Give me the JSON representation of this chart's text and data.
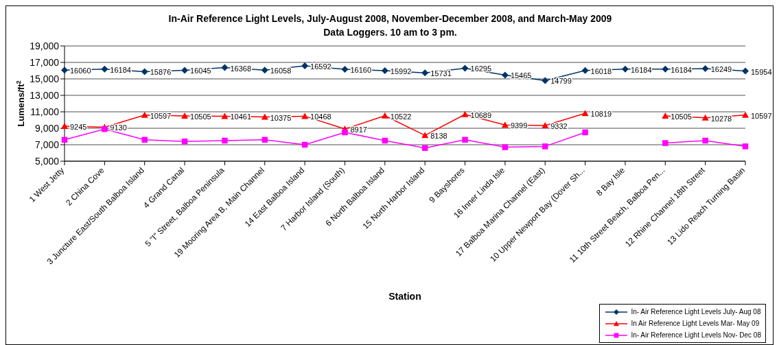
{
  "chart_data": {
    "type": "line",
    "title": "In-Air Reference Light Levels, July-August 2008, November-December 2008, and March-May 2009",
    "subtitle": "Data Loggers.    10 am to 3 pm.",
    "xlabel": "Station",
    "ylabel": "Lumens/ft$^{2}$",
    "categories": [
      "1  West Jetty",
      "2  China Cove",
      "3  Juncture East/South Balboa Island",
      "4  Grand Canal",
      "5  \"I\" Street,  Balboa Peninsula",
      "19  Mooring Area B, Main Channel",
      "14  East Balboa Island",
      "7  Harbor Island (South)",
      "6  North Balboa Island",
      "15  North Harbor Island",
      "9  Bayshores",
      "16  Inner Linda Isle",
      "17  Balboa Marina Channel (East)",
      "10  Upper Newport Bay (Dover Sh...",
      "8  Bay Isle",
      "11 10th Street Beach, Balboa Pen...",
      "12 Rhine Channel 18th Street",
      "13  Lido Reach Turning Basin"
    ],
    "series": [
      {
        "name": "In- Air Reference Light Levels July- Aug 08",
        "color": "#003366",
        "marker": "diamond",
        "values": [
          16060,
          16184,
          15876,
          16045,
          16368,
          16058,
          16592,
          16160,
          15992,
          15731,
          16295,
          15465,
          14799,
          16018,
          16184,
          16184,
          16249,
          15954
        ],
        "value_labels": [
          "16060",
          "16184",
          "15876",
          "16045",
          "16368",
          "16058",
          "16592",
          "16160",
          "15992",
          "15731",
          "16295",
          "15465",
          "14799",
          "16018",
          "16184",
          "16184",
          "16249",
          "15954"
        ]
      },
      {
        "name": "In Air Reference Light Levels Mar- May 09",
        "color": "#ff0000",
        "marker": "triangle",
        "values": [
          9245,
          9130,
          10597,
          10505,
          10461,
          10375,
          10468,
          8917,
          10522,
          8138,
          10689,
          9399,
          9332,
          10819,
          null,
          10505,
          10278,
          10597
        ],
        "value_labels": [
          "9245",
          "9130",
          "10597",
          "10505",
          "10461",
          "10375",
          "10468",
          "8917",
          "10522",
          "8138",
          "10689",
          "9399",
          "9332",
          "10819",
          null,
          "10505",
          "10278",
          "10597"
        ]
      },
      {
        "name": "In- Air Reference Light Levels Nov- Dec 08",
        "color": "#ff00ff",
        "marker": "square",
        "values": [
          7600,
          8900,
          7600,
          7400,
          7500,
          7600,
          7000,
          8500,
          7500,
          6600,
          7600,
          6700,
          6800,
          8500,
          null,
          7200,
          7500,
          6800
        ]
      }
    ],
    "ylim": [
      5000,
      19000
    ],
    "yticks": [
      {
        "value": 5000,
        "label": "5,000"
      },
      {
        "value": 7000,
        "label": "7,000"
      },
      {
        "value": 9000,
        "label": "9,000"
      },
      {
        "value": 11000,
        "label": "11,000"
      },
      {
        "value": 13000,
        "label": "13,000"
      },
      {
        "value": 15000,
        "label": "15,000"
      },
      {
        "value": 17000,
        "label": "17,000"
      },
      {
        "value": 19000,
        "label": "19,000"
      }
    ],
    "grid": "y",
    "legend": "bottom right"
  }
}
